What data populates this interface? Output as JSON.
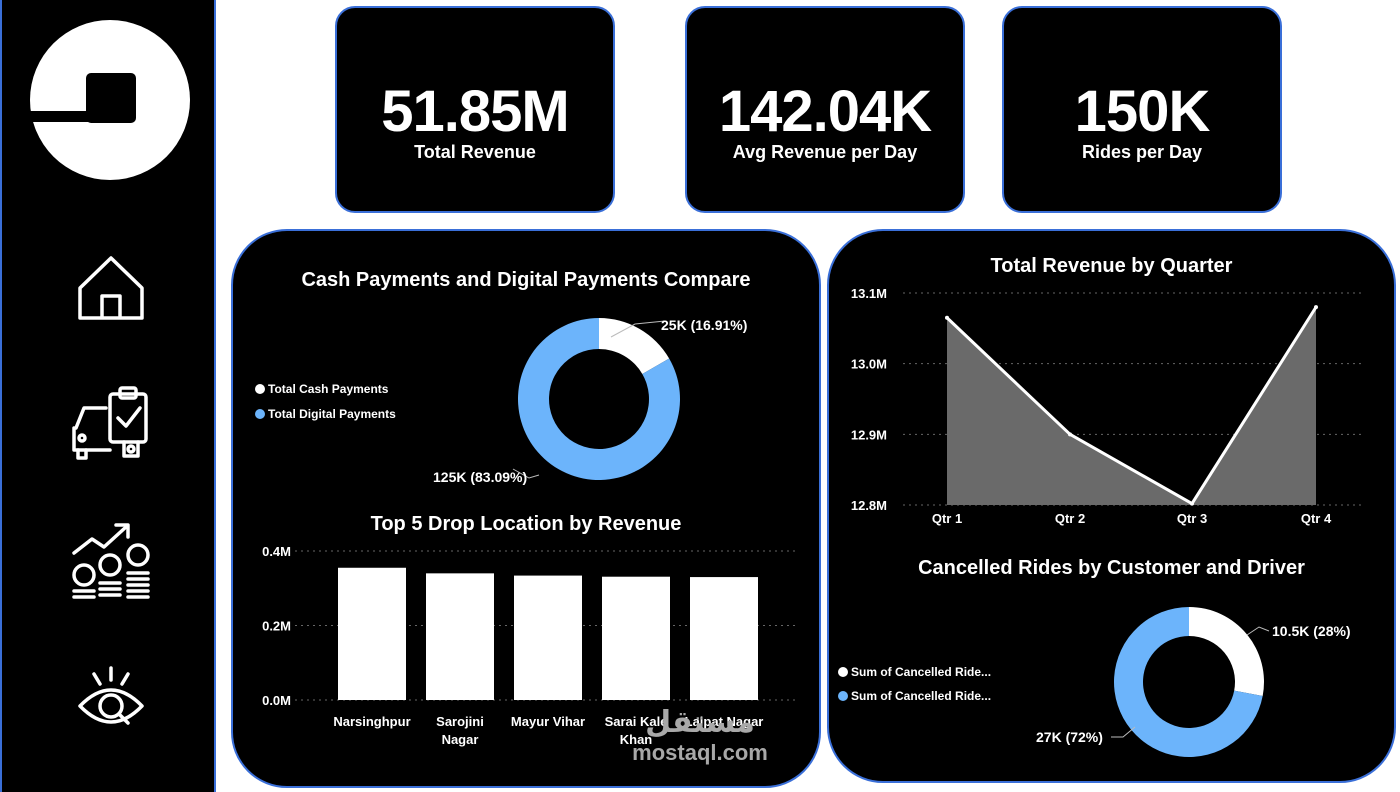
{
  "sidebar": {
    "logo": "uber-logo",
    "nav": [
      {
        "name": "home-icon"
      },
      {
        "name": "car-checklist-icon"
      },
      {
        "name": "revenue-growth-icon"
      },
      {
        "name": "eye-search-icon"
      }
    ]
  },
  "kpis": [
    {
      "value": "51.85M",
      "label": "Total Revenue"
    },
    {
      "value": "142.04K",
      "label": "Avg Revenue per Day"
    },
    {
      "value": "150K",
      "label": "Rides per Day"
    }
  ],
  "colors": {
    "accent": "#3a6fd8",
    "digital": "#6cb4fb",
    "cash": "#ffffff",
    "area": "#6a6a6a",
    "panel": "#000000"
  },
  "chart_data": [
    {
      "type": "pie",
      "variant": "donut",
      "title": "Cash Payments and Digital Payments Compare",
      "legend": "left",
      "categories": [
        "Total Cash Payments",
        "Total Digital Payments"
      ],
      "values": [
        25000,
        125000
      ],
      "labels": [
        "25K (16.91%)",
        "125K (83.09%)"
      ],
      "percent": [
        16.91,
        83.09
      ]
    },
    {
      "type": "bar",
      "title": "Top 5 Drop Location by Revenue",
      "categories": [
        "Narsinghpur",
        "Sarojini Nagar",
        "Mayur Vihar",
        "Sarai Kale Khan",
        "Lajpat Nagar"
      ],
      "values": [
        355000,
        340000,
        334000,
        331000,
        330000
      ],
      "ylim": [
        0,
        400000
      ],
      "yticks": [
        {
          "v": 0,
          "label": "0.0M"
        },
        {
          "v": 200000,
          "label": "0.2M"
        },
        {
          "v": 400000,
          "label": "0.4M"
        }
      ],
      "grid": true
    },
    {
      "type": "area",
      "title": "Total Revenue by Quarter",
      "categories": [
        "Qtr 1",
        "Qtr 2",
        "Qtr 3",
        "Qtr 4"
      ],
      "values": [
        13065000,
        12900000,
        12802000,
        13080000
      ],
      "ylim": [
        12800000,
        13100000
      ],
      "yticks": [
        {
          "v": 12800000,
          "label": "12.8M"
        },
        {
          "v": 12900000,
          "label": "12.9M"
        },
        {
          "v": 13000000,
          "label": "13.0M"
        },
        {
          "v": 13100000,
          "label": "13.1M"
        }
      ],
      "grid": true
    },
    {
      "type": "pie",
      "variant": "donut",
      "title": "Cancelled Rides by Customer and Driver",
      "legend": "left",
      "categories": [
        "Sum of Cancelled Ride...",
        "Sum of Cancelled Ride..."
      ],
      "values": [
        10500,
        27000
      ],
      "labels": [
        "10.5K (28%)",
        "27K (72%)"
      ],
      "percent": [
        28,
        72
      ]
    }
  ],
  "watermark": {
    "arabic": "مستقل",
    "site": "mostaql.com"
  }
}
